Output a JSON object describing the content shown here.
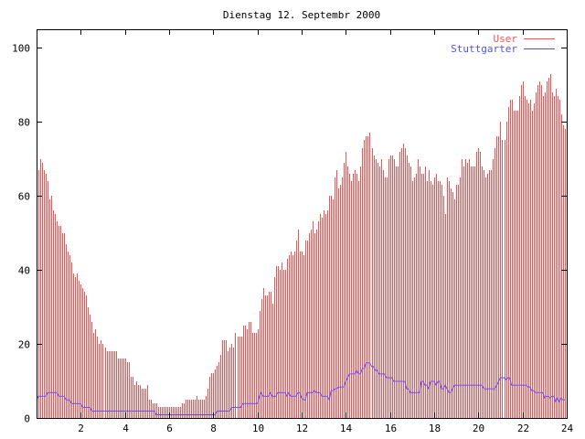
{
  "chart_data": {
    "type": "bar",
    "title": "Dienstag 12. Septembr 2000",
    "xlabel": "",
    "ylabel": "",
    "xlim": [
      0,
      24
    ],
    "ylim": [
      0,
      105
    ],
    "x_step_hours": 0.08333,
    "xticks": [
      2,
      4,
      6,
      8,
      10,
      12,
      14,
      16,
      18,
      20,
      22,
      24
    ],
    "yticks": [
      0,
      20,
      40,
      60,
      80,
      100
    ],
    "grid": false,
    "legend_position": "top-right",
    "colors": {
      "user": "#ff4f4f",
      "stuttgarter": "#4f4fff",
      "axis": "#000000"
    },
    "series": [
      {
        "name": "User",
        "style": "impulses",
        "values": [
          69,
          67,
          70,
          69,
          67,
          66,
          64,
          59,
          60,
          56,
          55,
          53,
          52,
          52,
          50,
          50,
          47,
          45,
          44,
          42,
          39,
          38,
          39,
          37,
          36,
          35,
          34,
          33,
          30,
          28,
          26,
          23,
          24,
          22,
          20,
          21,
          20,
          19,
          18,
          18,
          18,
          18,
          18,
          18,
          16,
          16,
          16,
          16,
          16,
          15,
          15,
          11,
          11,
          9,
          10,
          9,
          9,
          8,
          8,
          8,
          9,
          5,
          5,
          4,
          4,
          4,
          3,
          3,
          3,
          3,
          3,
          3,
          3,
          3,
          3,
          3,
          3,
          3,
          3,
          4,
          4,
          5,
          5,
          5,
          5,
          5,
          5,
          6,
          5,
          5,
          5,
          5,
          6,
          8,
          11,
          12,
          12,
          13,
          14,
          15,
          17,
          21,
          21,
          21,
          18,
          19,
          20,
          19,
          23,
          22,
          22,
          22,
          25,
          25,
          24,
          26,
          26,
          23,
          23,
          23,
          24,
          29,
          32,
          35,
          33,
          33,
          34,
          34,
          31,
          38,
          41,
          41,
          40,
          42,
          40,
          40,
          43,
          44,
          45,
          44,
          45,
          48,
          51,
          45,
          45,
          44,
          48,
          48,
          50,
          51,
          53,
          50,
          51,
          53,
          55,
          54,
          56,
          55,
          56,
          60,
          60,
          59,
          65,
          67,
          62,
          63,
          65,
          69,
          72,
          68,
          66,
          64,
          66,
          67,
          66,
          64,
          68,
          73,
          75,
          76,
          76,
          77,
          73,
          71,
          70,
          69,
          68,
          70,
          67,
          65,
          65,
          70,
          71,
          71,
          70,
          68,
          68,
          72,
          73,
          74,
          73,
          71,
          69,
          68,
          64,
          65,
          66,
          70,
          68,
          66,
          66,
          68,
          64,
          67,
          64,
          63,
          65,
          66,
          64,
          64,
          63,
          60,
          55,
          65,
          64,
          62,
          61,
          59,
          63,
          63,
          65,
          70,
          68,
          70,
          69,
          70,
          68,
          68,
          68,
          72,
          73,
          72,
          68,
          67,
          65,
          66,
          67,
          67,
          70,
          73,
          76,
          76,
          80,
          75,
          75,
          80,
          84,
          86,
          86,
          83,
          83,
          83,
          87,
          90,
          91,
          87,
          86,
          85,
          86,
          83,
          85,
          88,
          90,
          91,
          90,
          87,
          88,
          91,
          92,
          93,
          88,
          87,
          89,
          87,
          86,
          82,
          79,
          78
        ]
      },
      {
        "name": "Stuttgarter",
        "style": "lines",
        "values": [
          5,
          6,
          6,
          6,
          6,
          6,
          7,
          7,
          7,
          7,
          7,
          7,
          6,
          6,
          6,
          6,
          5,
          5,
          5,
          4,
          4,
          4,
          4,
          4,
          4,
          3,
          3,
          3,
          3,
          3,
          2,
          2,
          2,
          2,
          2,
          2,
          2,
          2,
          2,
          2,
          2,
          2,
          2,
          2,
          2,
          2,
          2,
          2,
          2,
          2,
          2,
          2,
          2,
          2,
          2,
          2,
          2,
          2,
          2,
          2,
          2,
          2,
          2,
          2,
          2,
          1,
          1,
          1,
          1,
          1,
          1,
          1,
          1,
          1,
          1,
          1,
          1,
          1,
          1,
          1,
          1,
          1,
          1,
          1,
          1,
          1,
          1,
          1,
          1,
          1,
          1,
          1,
          1,
          1,
          1,
          1,
          1,
          1,
          2,
          2,
          2,
          2,
          2,
          2,
          2,
          2,
          3,
          3,
          3,
          3,
          3,
          3,
          4,
          4,
          4,
          4,
          4,
          4,
          4,
          4,
          4,
          6,
          7,
          6,
          6,
          6,
          6,
          7,
          6,
          6,
          6,
          7,
          7,
          7,
          7,
          7,
          6,
          7,
          6,
          6,
          6,
          6,
          7,
          7,
          5.5,
          5,
          5,
          7,
          7,
          7,
          7,
          7.5,
          7,
          7,
          7,
          6,
          6,
          6,
          6,
          5,
          7.5,
          7.5,
          8,
          8,
          8.5,
          8.5,
          8.5,
          8.5,
          10,
          11,
          12,
          12,
          12,
          12,
          13,
          12,
          12,
          13.5,
          13.5,
          15,
          15,
          15,
          14,
          14,
          13,
          13,
          12,
          12,
          12,
          12,
          11,
          11,
          11,
          11,
          10,
          10,
          10,
          10,
          10,
          10,
          10,
          8,
          8,
          7,
          7,
          7,
          7,
          7,
          7,
          10,
          10,
          9,
          9,
          8,
          10,
          10,
          10,
          9,
          10,
          10,
          8,
          8,
          9,
          8,
          7,
          7,
          8,
          9,
          9,
          9,
          9,
          9,
          9,
          9,
          9,
          9,
          9,
          9,
          9,
          9,
          9,
          9,
          9,
          8,
          8,
          8,
          8,
          8,
          8,
          8,
          9,
          10,
          11,
          11,
          11,
          10.5,
          11,
          11,
          9,
          9,
          9,
          9,
          9,
          9,
          9,
          9,
          9,
          8.5,
          8.5,
          7.5,
          7.5,
          7,
          7,
          7,
          7,
          7,
          5.5,
          6,
          6,
          5.5,
          6,
          6,
          4.5,
          5.5,
          4.5,
          5.5,
          5,
          5
        ]
      }
    ]
  }
}
